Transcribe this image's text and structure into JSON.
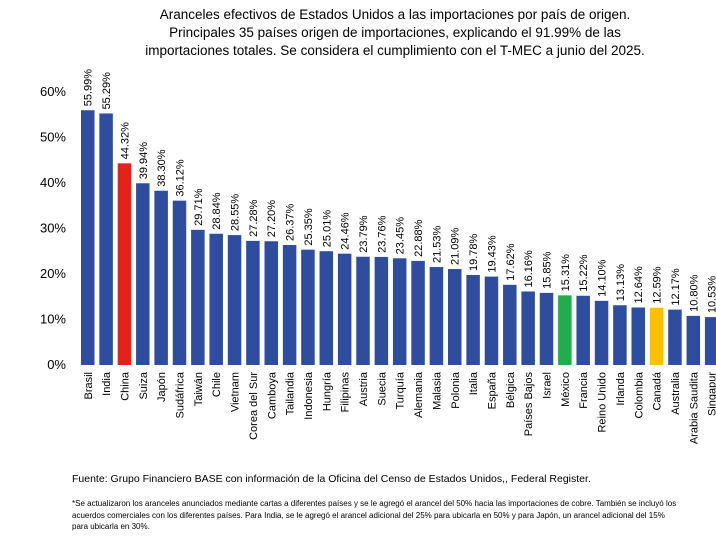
{
  "title_lines": [
    "Aranceles efectivos de Estados Unidos a las importaciones por país de origen.",
    "Principales 35 países origen de importaciones, explicando el 91.99% de las",
    "importaciones totales. Se considera el cumplimiento con el T-MEC a junio del 2025."
  ],
  "source": "Fuente: Grupo Financiero BASE con información de la Oficina del Censo de Estados Unidos,, Federal Register.",
  "note": "*Se actualizaron los aranceles anunciados mediante cartas a diferentes países y se le agregó el arancel del 50% hacia las importaciones de cobre. También se incluyó los acuerdos comerciales con los diferentes países. Para India, se le agregó el arancel adicional del 25% para ubicarla en 50% y para Japón, un arancel adicional del 15% para ubicarla en 30%.",
  "colors": {
    "default": "#2E4D9E",
    "china": "#E32219",
    "mexico": "#1FAE4B",
    "canada": "#FFC000"
  },
  "chart_data": {
    "type": "bar",
    "ylim": [
      0,
      60
    ],
    "yticks": [
      "0%",
      "10%",
      "20%",
      "30%",
      "40%",
      "50%",
      "60%"
    ],
    "grid": false,
    "categories": [
      "Brasil",
      "India",
      "China",
      "Suiza",
      "Japón",
      "Sudáfrica",
      "Taiwán",
      "Chile",
      "Vietnam",
      "Corea del Sur",
      "Camboya",
      "Tailandia",
      "Indonesia",
      "Hungría",
      "Filipinas",
      "Austria",
      "Suecia",
      "Turquía",
      "Alemania",
      "Malasia",
      "Polonia",
      "Italia",
      "España",
      "Bélgica",
      "Países Bajos",
      "Israel",
      "México",
      "Francia",
      "Reino Unido",
      "Irlanda",
      "Colombia",
      "Canadá",
      "Australia",
      "Arabia Saudita",
      "Singapur"
    ],
    "values": [
      55.99,
      55.29,
      44.32,
      39.94,
      38.3,
      36.12,
      29.71,
      28.84,
      28.55,
      27.28,
      27.2,
      26.37,
      25.35,
      25.01,
      24.46,
      23.79,
      23.76,
      23.45,
      22.88,
      21.53,
      21.09,
      19.78,
      19.43,
      17.62,
      16.16,
      15.85,
      15.31,
      15.22,
      14.1,
      13.13,
      12.64,
      12.59,
      12.17,
      10.8,
      10.53
    ],
    "labels": [
      "55.99%",
      "55.29%",
      "44.32%",
      "39.94%",
      "38.30%",
      "36.12%",
      "29.71%",
      "28.84%",
      "28.55%",
      "27.28%",
      "27.20%",
      "26.37%",
      "25.35%",
      "25.01%",
      "24.46%",
      "23.79%",
      "23.76%",
      "23.45%",
      "22.88%",
      "21.53%",
      "21.09%",
      "19.78%",
      "19.43%",
      "17.62%",
      "16.16%",
      "15.85%",
      "15.31%",
      "15.22%",
      "14.10%",
      "13.13%",
      "12.64%",
      "12.59%",
      "12.17%",
      "10.80%",
      "10.53%"
    ],
    "highlights": {
      "China": "china",
      "México": "mexico",
      "Canadá": "canada"
    }
  }
}
